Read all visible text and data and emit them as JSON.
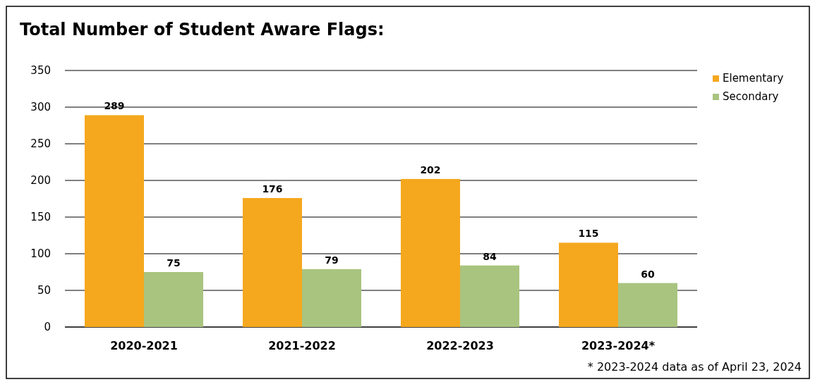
{
  "chart_data": {
    "type": "bar",
    "title": "Total Number of Student Aware Flags:",
    "categories": [
      "2020-2021",
      "2021-2022",
      "2022-2023",
      "2023-2024*"
    ],
    "series": [
      {
        "name": "Elementary",
        "color": "#f5a81e",
        "values": [
          289,
          176,
          202,
          115
        ]
      },
      {
        "name": "Secondary",
        "color": "#a9c47f",
        "values": [
          75,
          79,
          84,
          60
        ]
      }
    ],
    "ylim": [
      0,
      350
    ],
    "yticks": [
      0,
      50,
      100,
      150,
      200,
      250,
      300,
      350
    ],
    "grid": "y",
    "legend": "right",
    "data_labels": true,
    "annotations": [
      "* 2023-2024 data as of April 23, 2024"
    ]
  }
}
